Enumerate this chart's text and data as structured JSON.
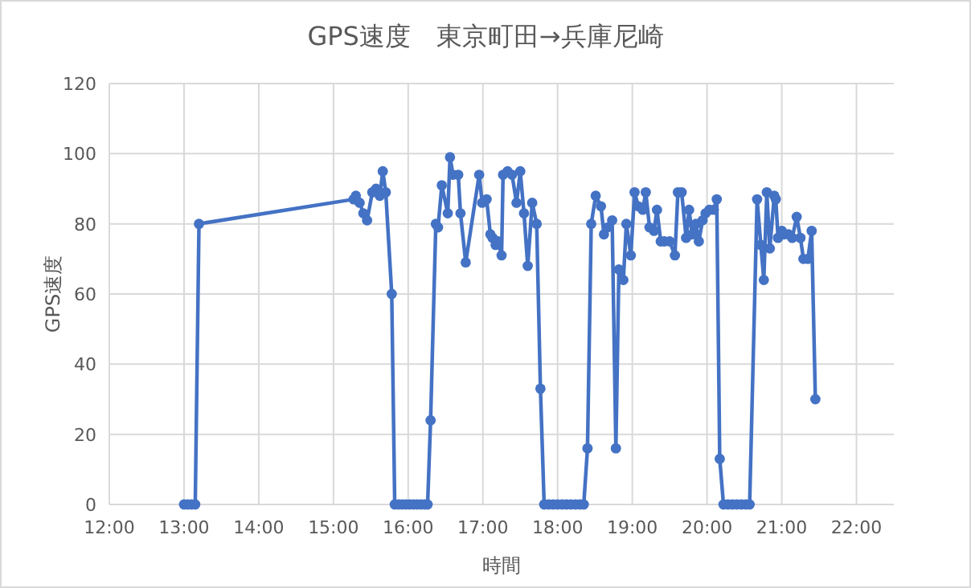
{
  "chart_data": {
    "type": "line",
    "title": "GPS速度　東京町田→兵庫尼崎",
    "xlabel": "時間",
    "ylabel": "GPS速度",
    "xlim": [
      12,
      22.5
    ],
    "xticks": [
      {
        "value": 12,
        "label": "12:00"
      },
      {
        "value": 13,
        "label": "13:00"
      },
      {
        "value": 14,
        "label": "14:00"
      },
      {
        "value": 15,
        "label": "15:00"
      },
      {
        "value": 16,
        "label": "16:00"
      },
      {
        "value": 17,
        "label": "17:00"
      },
      {
        "value": 18,
        "label": "18:00"
      },
      {
        "value": 19,
        "label": "19:00"
      },
      {
        "value": 20,
        "label": "20:00"
      },
      {
        "value": 21,
        "label": "21:00"
      },
      {
        "value": 22,
        "label": "22:00"
      }
    ],
    "ylim": [
      0,
      120
    ],
    "yticks": [
      0,
      20,
      40,
      60,
      80,
      100,
      120
    ],
    "grid": true,
    "marker": "circle",
    "line_style": "solid",
    "series": [
      {
        "color": "#4472c4",
        "x": [
          13.0,
          13.05,
          13.1,
          13.15,
          13.2,
          15.27,
          15.3,
          15.35,
          15.4,
          15.45,
          15.52,
          15.57,
          15.62,
          15.66,
          15.7,
          15.78,
          15.82,
          15.87,
          15.92,
          15.97,
          16.02,
          16.07,
          16.12,
          16.17,
          16.22,
          16.26,
          16.3,
          16.37,
          16.4,
          16.45,
          16.53,
          16.56,
          16.6,
          16.67,
          16.7,
          16.77,
          16.95,
          16.99,
          17.05,
          17.1,
          17.13,
          17.17,
          17.2,
          17.25,
          17.27,
          17.33,
          17.39,
          17.45,
          17.5,
          17.55,
          17.6,
          17.66,
          17.72,
          17.77,
          17.82,
          17.88,
          17.94,
          18.0,
          18.06,
          18.12,
          18.18,
          18.24,
          18.3,
          18.35,
          18.4,
          18.45,
          18.51,
          18.58,
          18.62,
          18.67,
          18.73,
          18.78,
          18.82,
          18.88,
          18.92,
          18.98,
          19.03,
          19.08,
          19.14,
          19.18,
          19.23,
          19.29,
          19.33,
          19.38,
          19.43,
          19.5,
          19.57,
          19.61,
          19.66,
          19.72,
          19.76,
          19.8,
          19.85,
          19.89,
          19.94,
          19.98,
          20.03,
          20.09,
          20.13,
          20.17,
          20.22,
          20.28,
          20.34,
          20.4,
          20.46,
          20.52,
          20.57,
          20.67,
          20.72,
          20.76,
          20.8,
          20.84,
          20.9,
          20.92,
          20.95,
          21.0,
          21.03,
          21.09,
          21.14,
          21.2,
          21.25,
          21.29,
          21.35,
          21.4,
          21.45
        ],
        "values": [
          0,
          0,
          0,
          0,
          80,
          87,
          88,
          86,
          83,
          81,
          89,
          90,
          88,
          95,
          89,
          60,
          0,
          0,
          0,
          0,
          0,
          0,
          0,
          0,
          0,
          0,
          24,
          80,
          79,
          91,
          83,
          99,
          94,
          94,
          83,
          69,
          94,
          86,
          87,
          77,
          76,
          74,
          75,
          71,
          94,
          95,
          94,
          86,
          95,
          83,
          68,
          86,
          80,
          33,
          0,
          0,
          0,
          0,
          0,
          0,
          0,
          0,
          0,
          0,
          16,
          80,
          88,
          85,
          77,
          79,
          81,
          16,
          67,
          64,
          80,
          71,
          89,
          85,
          84,
          89,
          79,
          78,
          84,
          75,
          75,
          75,
          71,
          89,
          89,
          76,
          84,
          77,
          80,
          75,
          81,
          83,
          84,
          84,
          87,
          13,
          0,
          0,
          0,
          0,
          0,
          0,
          0,
          87,
          74,
          64,
          89,
          73,
          88,
          87,
          76,
          78,
          77,
          77,
          76,
          82,
          76,
          70,
          70,
          78,
          30
        ]
      }
    ]
  }
}
